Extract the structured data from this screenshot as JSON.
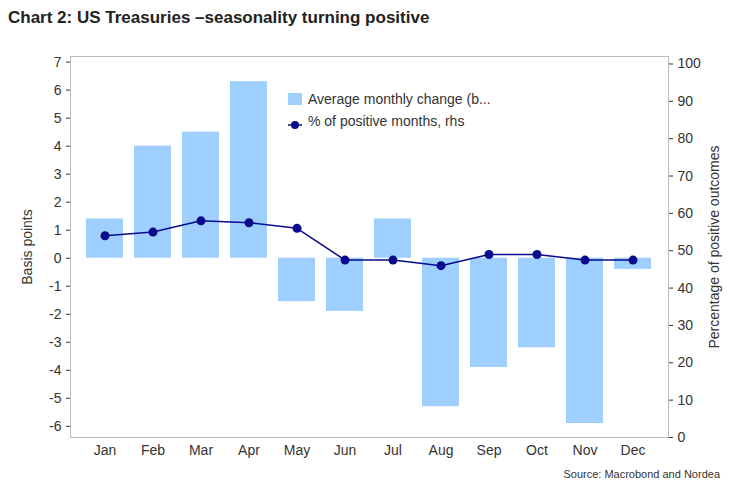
{
  "chart_data": {
    "type": "bar",
    "title": "Chart 2: US Treasuries –seasonality turning positive",
    "caption": "Source: Macrobond and Nordea",
    "y_label": "Basis points",
    "y2_label": "Percentage of positive outcomes",
    "categories": [
      "Jan",
      "Feb",
      "Mar",
      "Apr",
      "May",
      "Jun",
      "Jul",
      "Aug",
      "Sep",
      "Oct",
      "Nov",
      "Dec"
    ],
    "series": [
      {
        "name": "Average monthly change (b...",
        "type": "bar",
        "color": "#9fcfff",
        "values": [
          1.4,
          4.0,
          4.5,
          6.3,
          -1.55,
          -1.9,
          1.4,
          -5.3,
          -3.9,
          -3.2,
          -5.9,
          -0.4
        ]
      },
      {
        "name": "% of positive months, rhs",
        "type": "line",
        "axis": "y2",
        "color": "#0a0a8c",
        "marker": "circle",
        "values": [
          54,
          55,
          58,
          57.5,
          56,
          47.5,
          47.5,
          46,
          49,
          49,
          47.5,
          47.5
        ]
      }
    ],
    "ylim": [
      -6.4,
      7.2
    ],
    "yticks": [
      -6,
      -5,
      -4,
      -3,
      -2,
      -1,
      0,
      1,
      2,
      3,
      4,
      5,
      6,
      7
    ],
    "y2lim": [
      0,
      102
    ],
    "y2ticks": [
      0,
      10,
      20,
      30,
      40,
      50,
      60,
      70,
      80,
      90,
      100
    ],
    "legend": "top",
    "grid": false
  }
}
